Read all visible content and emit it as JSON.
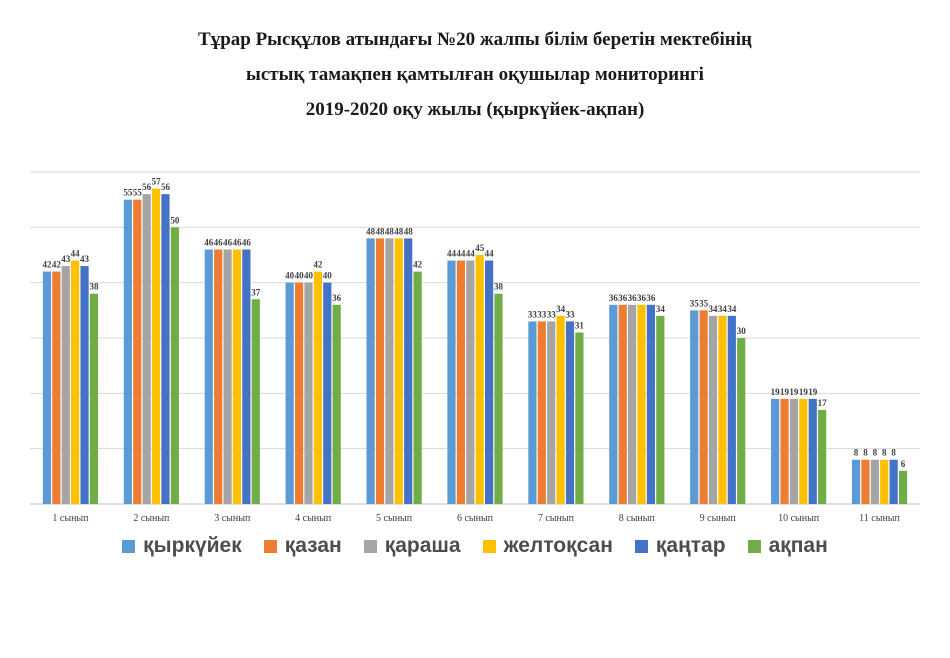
{
  "title": {
    "line1": "Тұрар Рысқұлов атындағы №20 жалпы білім беретін мектебінің",
    "line2": "ыстық тамақпен қамтылған оқушылар мониторингі",
    "line3": "2019-2020 оқу жылы (қыркүйек-ақпан)"
  },
  "colors": {
    "gridline": "#d9d9d9",
    "axis": "#bfbfbf",
    "data_label": "#404040",
    "category_label": "#404040"
  },
  "chart_data": {
    "type": "bar",
    "title": "Тұрар Рысқұлов атындағы №20 жалпы білім беретін мектебінің ыстық тамақпен қамтылған оқушылар мониторингі 2019-2020 оқу жылы (қыркүйек-ақпан)",
    "xlabel": "",
    "ylabel": "",
    "ylim": [
      0,
      60
    ],
    "grid": true,
    "legend_position": "bottom",
    "categories": [
      "1 сынып",
      "2 сынып",
      "3 сынып",
      "4 сынып",
      "5 сынып",
      "6 сынып",
      "7 сынып",
      "8 сынып",
      "9 сынып",
      "10 сынып",
      "11 сынып"
    ],
    "series": [
      {
        "name": "қыркүйек",
        "color": "#5b9bd5",
        "values": [
          42,
          55,
          46,
          40,
          48,
          44,
          33,
          36,
          35,
          19,
          8
        ]
      },
      {
        "name": "қазан",
        "color": "#ed7d31",
        "values": [
          42,
          55,
          46,
          40,
          48,
          44,
          33,
          36,
          35,
          19,
          8
        ]
      },
      {
        "name": "қараша",
        "color": "#a5a5a5",
        "values": [
          43,
          56,
          46,
          40,
          48,
          44,
          33,
          36,
          34,
          19,
          8
        ]
      },
      {
        "name": "желтоқсан",
        "color": "#ffc000",
        "values": [
          44,
          57,
          46,
          42,
          48,
          45,
          34,
          36,
          34,
          19,
          8
        ]
      },
      {
        "name": "қаңтар",
        "color": "#4472c4",
        "values": [
          43,
          56,
          46,
          40,
          48,
          44,
          33,
          36,
          34,
          19,
          8
        ]
      },
      {
        "name": "ақпан",
        "color": "#70ad47",
        "values": [
          38,
          50,
          37,
          36,
          42,
          38,
          31,
          34,
          30,
          17,
          6
        ]
      }
    ]
  }
}
